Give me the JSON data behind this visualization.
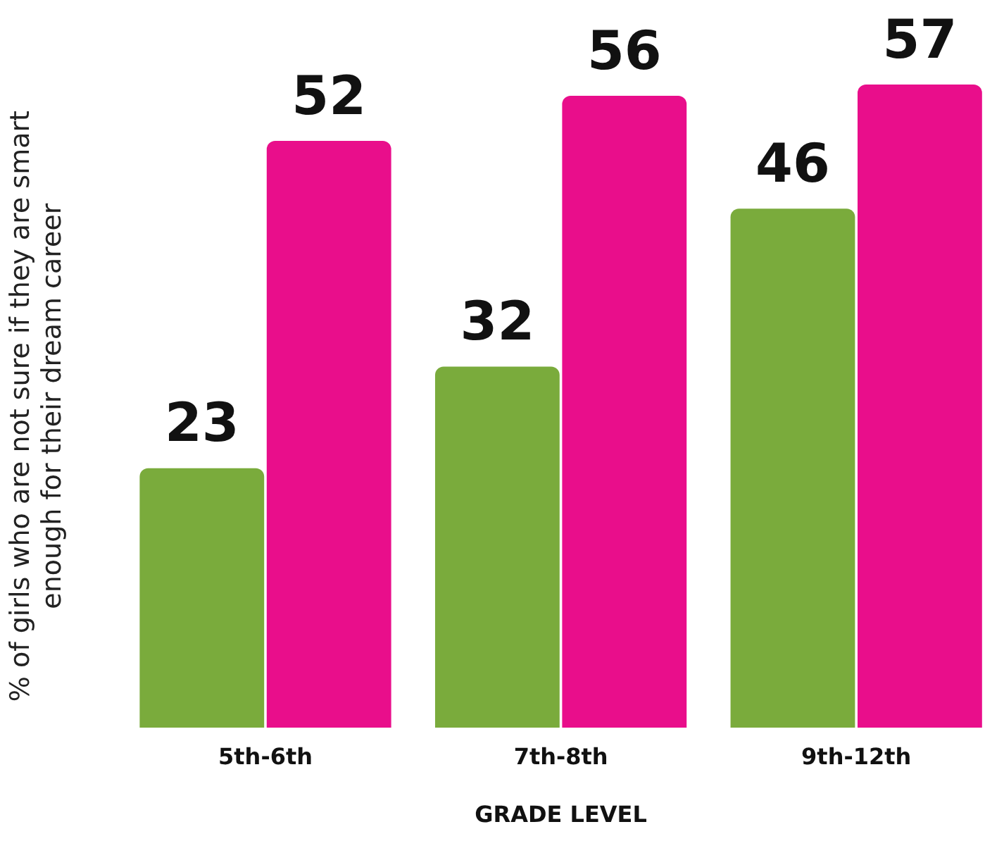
{
  "chart_data": {
    "type": "bar",
    "ylabel": "% of girls who are not sure if they are smart\nenough for their dream career",
    "xlabel": "GRADE LEVEL",
    "categories": [
      "5th-6th",
      "7th-8th",
      "9th-12th"
    ],
    "series": [
      {
        "color": "#7aab3c",
        "values": [
          23,
          32,
          46
        ]
      },
      {
        "color": "#e90e8b",
        "values": [
          52,
          56,
          57
        ]
      }
    ],
    "data_labels": true,
    "grid": false,
    "legend": false,
    "tick_labels": "x"
  }
}
